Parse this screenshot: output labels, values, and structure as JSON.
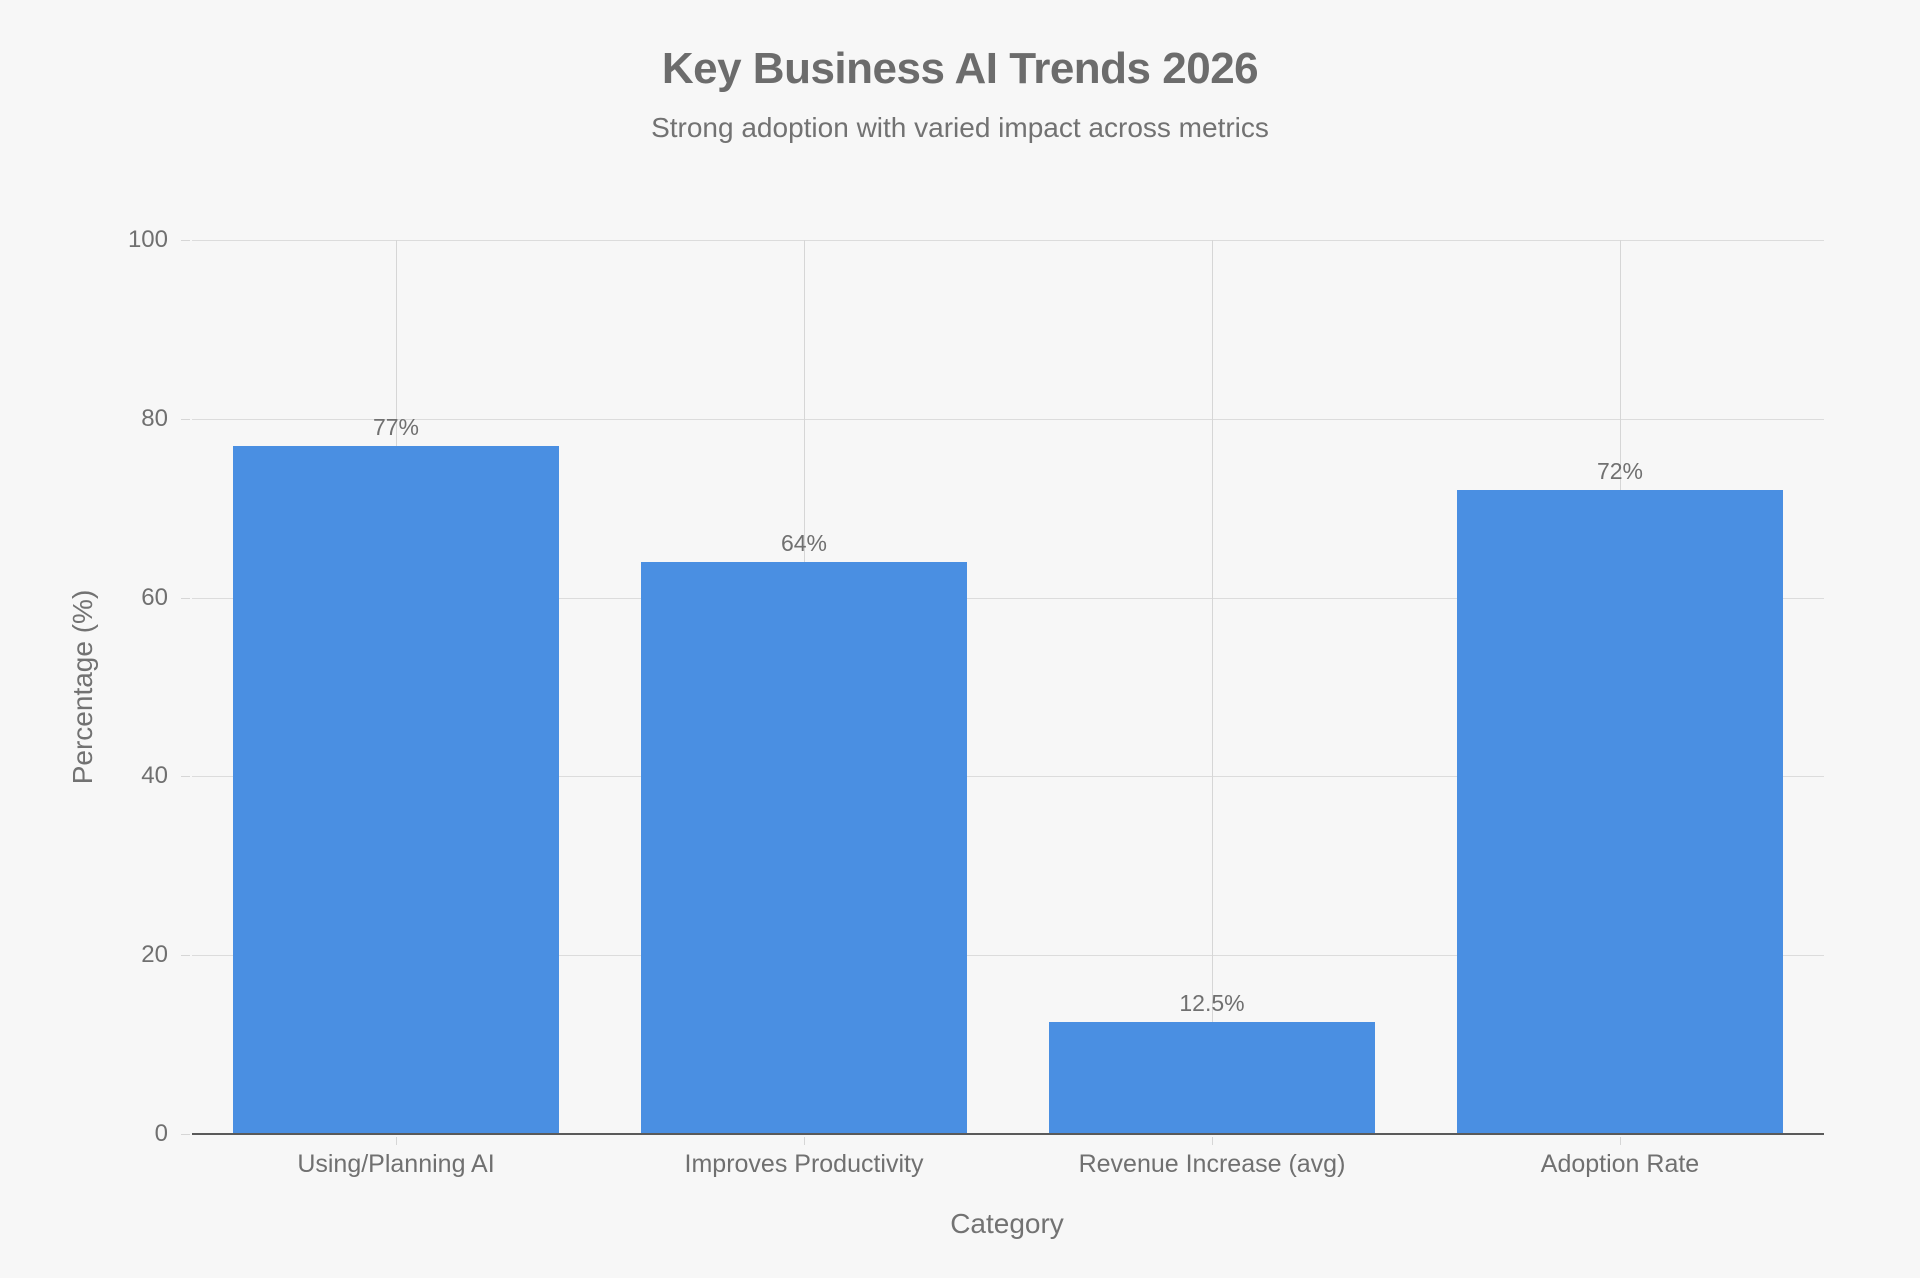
{
  "chart_data": {
    "type": "bar",
    "title": "Key Business AI Trends 2026",
    "subtitle": "Strong adoption with varied impact across metrics",
    "xlabel": "Category",
    "ylabel": "Percentage (%)",
    "categories": [
      "Using/Planning AI",
      "Improves Productivity",
      "Revenue Increase (avg)",
      "Adoption Rate"
    ],
    "values": [
      77,
      64,
      12.5,
      72
    ],
    "data_labels": [
      "77%",
      "64%",
      "12.5%",
      "72%"
    ],
    "ylim": [
      0,
      100
    ],
    "yticks": [
      0,
      20,
      40,
      60,
      80,
      100
    ],
    "ytick_labels": [
      "0",
      "20",
      "40",
      "60",
      "80",
      "100"
    ],
    "grid": true,
    "legend": null,
    "bar_color": "#4a8fe2",
    "background_color": "#f7f7f7"
  }
}
